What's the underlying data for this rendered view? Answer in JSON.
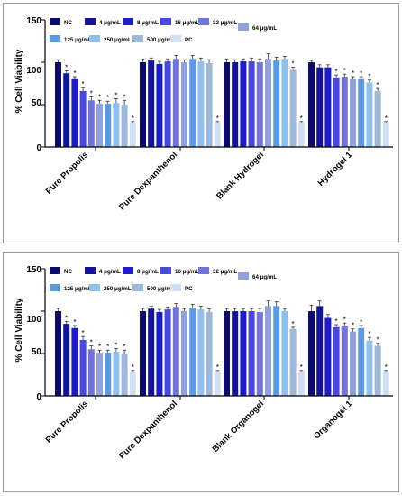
{
  "chart_data": [
    {
      "type": "bar",
      "ylabel": "% Cell Viability",
      "ylim": [
        0,
        150
      ],
      "yticks": [
        "0",
        "50",
        "100",
        "150"
      ],
      "significance_marker": "*",
      "legend_placement": "top",
      "categories": [
        "Pure Propolis",
        "Pure Dexpanthenol",
        "Blank Hydrogel",
        "Hydrogel 1"
      ],
      "series": [
        {
          "name": "NC",
          "color": "#0b0b6e",
          "values": [
            100,
            100,
            100,
            100
          ],
          "errors": [
            3,
            4,
            4,
            2
          ],
          "sig": [
            0,
            0,
            0,
            0
          ]
        },
        {
          "name": "4 μg/mL",
          "color": "#13139c",
          "values": [
            87,
            102,
            100,
            94
          ],
          "errors": [
            3,
            3,
            3,
            3
          ],
          "sig": [
            1,
            0,
            0,
            0
          ]
        },
        {
          "name": "8 μg/mL",
          "color": "#1c1ccc",
          "values": [
            80,
            98,
            101,
            94
          ],
          "errors": [
            3,
            3,
            3,
            3
          ],
          "sig": [
            1,
            0,
            0,
            0
          ]
        },
        {
          "name": "16 μg/mL",
          "color": "#4848e0",
          "values": [
            66,
            101,
            101,
            82
          ],
          "errors": [
            4,
            3,
            4,
            3
          ],
          "sig": [
            1,
            0,
            0,
            1
          ]
        },
        {
          "name": "32 μg/mL",
          "color": "#7373dc",
          "values": [
            55,
            104,
            100,
            83
          ],
          "errors": [
            4,
            4,
            4,
            3
          ],
          "sig": [
            1,
            0,
            0,
            1
          ]
        },
        {
          "name": "64 μg/mL",
          "color": "#8fa2dc",
          "values": [
            51,
            100,
            104,
            80
          ],
          "errors": [
            4,
            3,
            6,
            3
          ],
          "sig": [
            1,
            0,
            0,
            1
          ]
        },
        {
          "name": "125 μg/mL",
          "color": "#5b9be6",
          "values": [
            51,
            104,
            102,
            80
          ],
          "errors": [
            3,
            4,
            4,
            3
          ],
          "sig": [
            1,
            0,
            0,
            1
          ]
        },
        {
          "name": "250 μg/mL",
          "color": "#8fc0ee",
          "values": [
            52,
            101,
            104,
            76
          ],
          "errors": [
            5,
            4,
            3,
            3
          ],
          "sig": [
            1,
            0,
            0,
            1
          ]
        },
        {
          "name": "500 μg/mL",
          "color": "#9db8d8",
          "values": [
            50,
            99,
            91,
            66
          ],
          "errors": [
            5,
            4,
            3,
            3
          ],
          "sig": [
            1,
            0,
            1,
            1
          ]
        },
        {
          "name": "PC",
          "color": "#cfe0f5",
          "values": [
            29,
            29,
            29,
            29
          ],
          "errors": [
            1,
            1,
            1,
            1
          ],
          "sig": [
            1,
            1,
            1,
            1
          ]
        }
      ]
    },
    {
      "type": "bar",
      "ylabel": "% Cell Viability",
      "ylim": [
        0,
        150
      ],
      "yticks": [
        "0",
        "50",
        "100",
        "150"
      ],
      "significance_marker": "*",
      "legend_placement": "top",
      "categories": [
        "Pure Propolis",
        "Pure Dexpanthenol",
        "Blank Organogel",
        "Organogel 1"
      ],
      "series": [
        {
          "name": "NC",
          "color": "#0b0b6e",
          "values": [
            100,
            100,
            100,
            100
          ],
          "errors": [
            3,
            3,
            3,
            7
          ],
          "sig": [
            0,
            0,
            0,
            0
          ]
        },
        {
          "name": "4 μg/mL",
          "color": "#13139c",
          "values": [
            85,
            103,
            100,
            106
          ],
          "errors": [
            3,
            3,
            3,
            6
          ],
          "sig": [
            1,
            0,
            0,
            0
          ]
        },
        {
          "name": "8 μg/mL",
          "color": "#1c1ccc",
          "values": [
            80,
            99,
            100,
            92
          ],
          "errors": [
            3,
            3,
            3,
            4
          ],
          "sig": [
            1,
            0,
            0,
            0
          ]
        },
        {
          "name": "16 μg/mL",
          "color": "#4848e0",
          "values": [
            66,
            102,
            100,
            81
          ],
          "errors": [
            4,
            3,
            3,
            3
          ],
          "sig": [
            1,
            0,
            0,
            1
          ]
        },
        {
          "name": "32 μg/mL",
          "color": "#7373dc",
          "values": [
            55,
            105,
            99,
            83
          ],
          "errors": [
            4,
            4,
            4,
            3
          ],
          "sig": [
            1,
            0,
            0,
            1
          ]
        },
        {
          "name": "64 μg/mL",
          "color": "#8fa2dc",
          "values": [
            51,
            100,
            106,
            76
          ],
          "errors": [
            3,
            3,
            6,
            3
          ],
          "sig": [
            1,
            0,
            0,
            1
          ]
        },
        {
          "name": "125 μg/mL",
          "color": "#5b9be6",
          "values": [
            51,
            104,
            106,
            80
          ],
          "errors": [
            3,
            4,
            5,
            3
          ],
          "sig": [
            1,
            0,
            0,
            1
          ]
        },
        {
          "name": "250 μg/mL",
          "color": "#8fc0ee",
          "values": [
            52,
            102,
            100,
            65
          ],
          "errors": [
            4,
            4,
            3,
            4
          ],
          "sig": [
            1,
            0,
            0,
            1
          ]
        },
        {
          "name": "500 μg/mL",
          "color": "#9db8d8",
          "values": [
            50,
            99,
            79,
            59
          ],
          "errors": [
            4,
            4,
            2,
            3
          ],
          "sig": [
            1,
            0,
            1,
            1
          ]
        },
        {
          "name": "PC",
          "color": "#cfe0f5",
          "values": [
            29,
            29,
            29,
            29
          ],
          "errors": [
            1,
            1,
            1,
            1
          ],
          "sig": [
            1,
            1,
            1,
            1
          ]
        }
      ]
    }
  ]
}
